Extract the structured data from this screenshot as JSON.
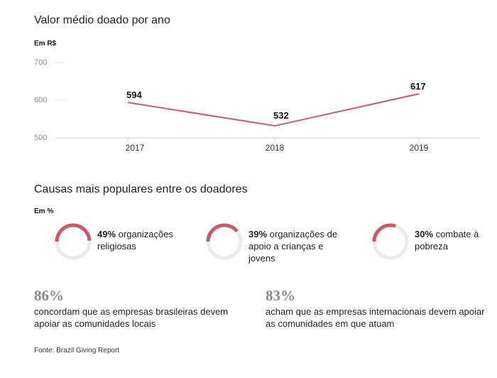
{
  "chart_data": [
    {
      "type": "line",
      "title": "Valor médio doado por ano",
      "ylabel": "Em R$",
      "categories": [
        "2017",
        "2018",
        "2019"
      ],
      "values": [
        594,
        532,
        617
      ],
      "data_labels": [
        "594",
        "532",
        "617"
      ],
      "ylim": [
        500,
        700
      ],
      "yticks": [
        "500",
        "600",
        "700"
      ],
      "color": "#d0566a"
    },
    {
      "type": "pie",
      "title": "Causas mais populares entre os doadores",
      "unit": "Em %",
      "items": [
        {
          "value": 49,
          "label": "49%",
          "text": "organizações religiosas"
        },
        {
          "value": 39,
          "label": "39%",
          "text": "organizações de apoio a crianças e jovens"
        },
        {
          "value": 30,
          "label": "30%",
          "text": "combate à pobreza"
        }
      ],
      "color": "#d0566a",
      "track_color": "#ebebeb"
    }
  ],
  "stats": [
    {
      "value": "86%",
      "text": "concordam que as empresas brasileiras devem apoiar as comunidades locais"
    },
    {
      "value": "83%",
      "text": "acham que as empresas internacionais devem apoiar as comunidades em que atuam"
    }
  ],
  "source": "Fonte: Brazil Giving Report"
}
